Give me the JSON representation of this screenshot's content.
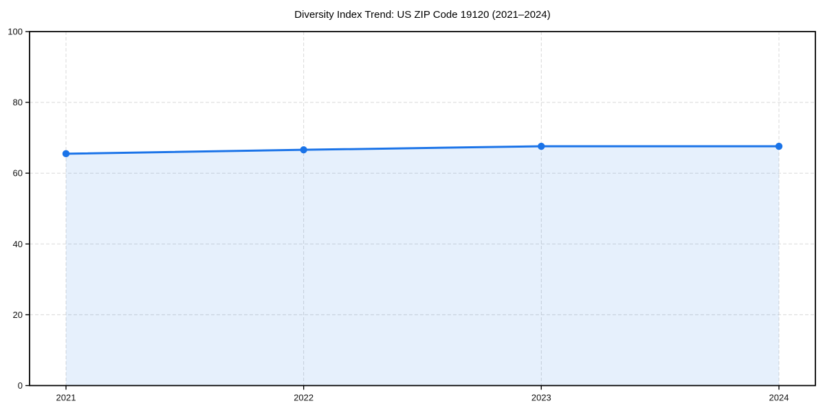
{
  "chart_data": {
    "type": "area",
    "title": "Diversity Index Trend: US ZIP Code 19120 (2021–2024)",
    "series_name": "Diversity Index",
    "categories": [
      "2021",
      "2022",
      "2023",
      "2024"
    ],
    "values": [
      65.5,
      66.6,
      67.6,
      67.6
    ],
    "xlabel": "",
    "ylabel": "",
    "ylim": [
      0,
      100
    ],
    "y_ticks": [
      0,
      20,
      40,
      60,
      80,
      100
    ],
    "grid": "dashed-both-axes",
    "legend_position": "none",
    "marker": "circle",
    "colors": {
      "line": "#1a73e8",
      "marker": "#1a73e8",
      "fill": "#1a73e8",
      "fill_opacity": 0.11,
      "gridline": "#d8d8d8",
      "axis": "#000000",
      "tick_label": "#111111",
      "title": "#000000"
    }
  }
}
